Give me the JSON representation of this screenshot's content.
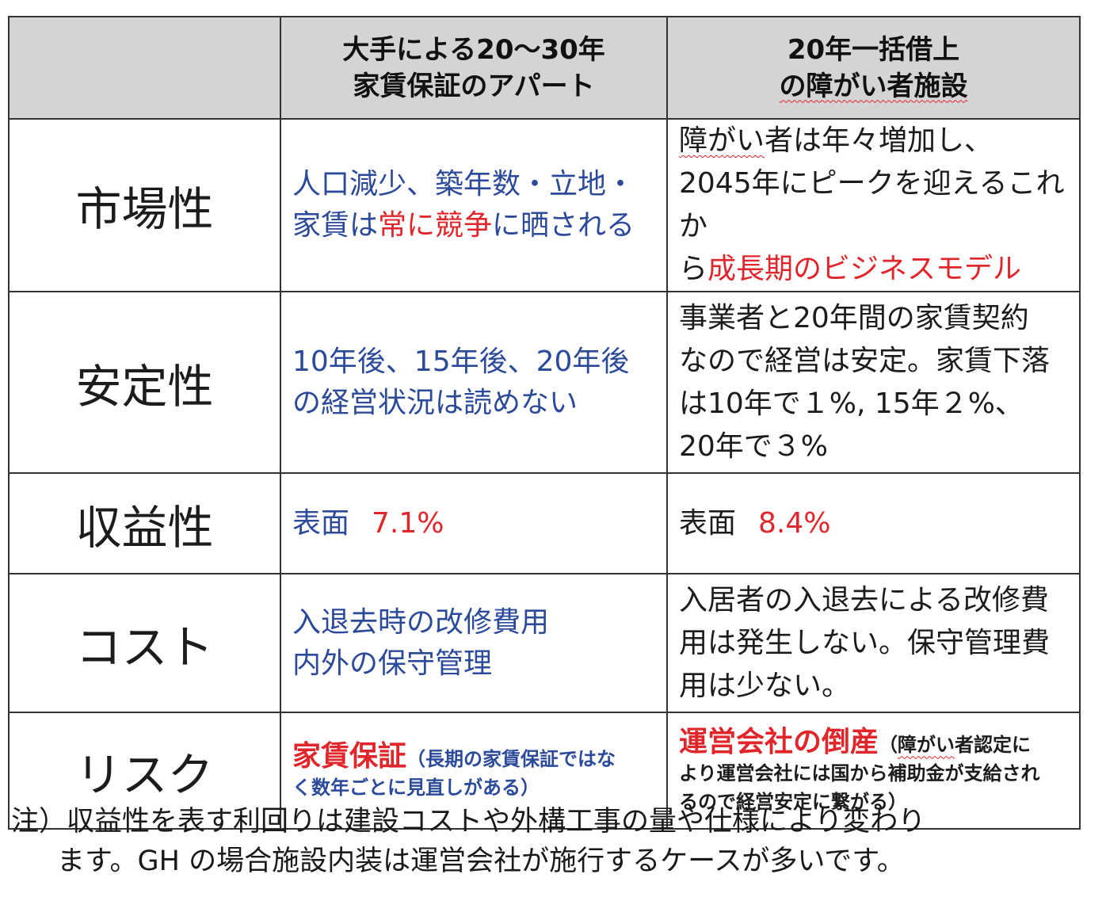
{
  "header": {
    "col_a_line1": "大手による20～30年",
    "col_a_line2": "家賃保証のアパート",
    "col_b_line1": "20年一括借上",
    "col_b_line2": "の障がい者施設"
  },
  "rows": [
    {
      "label": "市場性",
      "a": {
        "line1": "人口減少、築年数・立地・",
        "l2_pre": "家賃は",
        "l2_red": "常に競争",
        "l2_post": "に晒される"
      },
      "b": {
        "l1_under": "障がい",
        "l1_rest": "者は年々増加し、",
        "line2": "2045年にピークを迎えるこれか",
        "l3_pre": "ら",
        "l3_red": "成長期のビジネスモデル"
      }
    },
    {
      "label": "安定性",
      "a": {
        "line1": "10年後、15年後、20年後",
        "line2": "の経営状況は読めない"
      },
      "b": {
        "line1": "事業者と20年間の家賃契約",
        "line2": "なので経営は安定。家賃下落",
        "line3": "は10年で１%, 15年２%、",
        "line4": "20年で３%"
      }
    },
    {
      "label": "収益性",
      "a": {
        "pre": "表面",
        "red": "7.1%"
      },
      "b": {
        "pre": "表面",
        "red": "8.4%"
      }
    },
    {
      "label": "コスト",
      "a": {
        "line1": "入退去時の改修費用",
        "line2": "内外の保守管理"
      },
      "b": {
        "line1": "入居者の入退去による改修費",
        "line2": "用は発生しない。保守管理費",
        "line3": "用は少ない。"
      }
    },
    {
      "label": "リスク",
      "a": {
        "red": "家賃保証",
        "small1": "（長期の家賃保証ではな",
        "small2": "く数年ごとに見直しがある）"
      },
      "b": {
        "red": "運営会社の倒産",
        "small1_pre": "（",
        "small1_under": "障がい",
        "small1_post": "者認定に",
        "small2": "より運営会社には国から補助金が支給され",
        "small3": "るので経営安定に繋がる）"
      }
    }
  ],
  "note": {
    "line1": "注）収益性を表す利回りは建設コストや外構工事の量や仕様により変わり",
    "line2": "ます。GH の場合施設内装は運営会社が施行するケースが多いです。"
  }
}
